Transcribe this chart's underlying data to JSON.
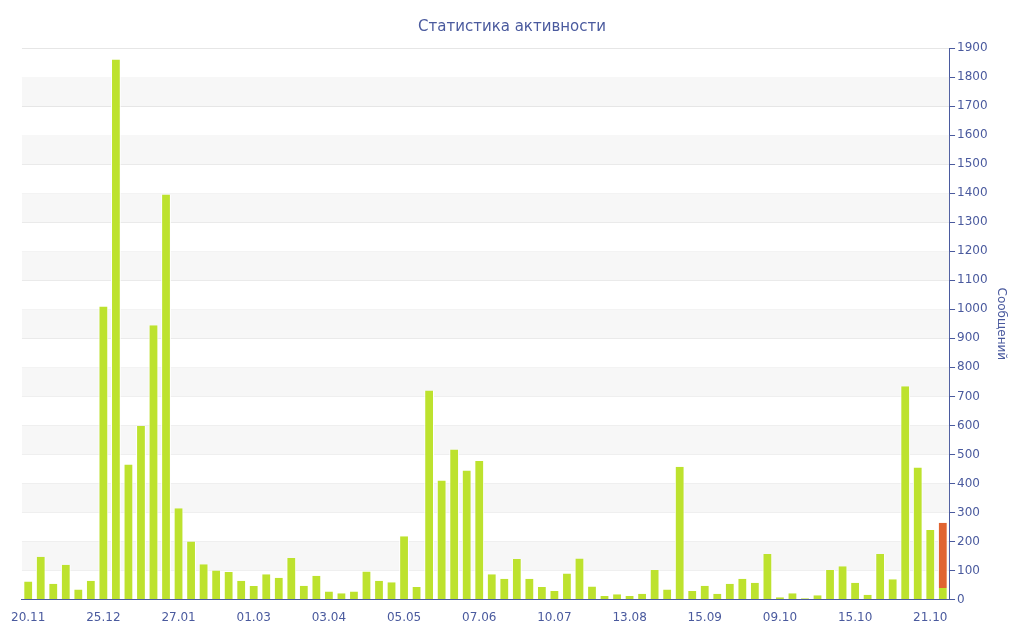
{
  "chart_data": {
    "type": "bar",
    "title": "Статистика активности",
    "ylabel": "Сообщений",
    "stacked": true,
    "grid": "y",
    "legend": false,
    "categories": [
      "20.11",
      null,
      null,
      null,
      null,
      null,
      "25.12",
      null,
      null,
      null,
      null,
      null,
      "27.01",
      null,
      null,
      null,
      null,
      null,
      "01.03",
      null,
      null,
      null,
      null,
      null,
      "03.04",
      null,
      null,
      null,
      null,
      null,
      "05.05",
      null,
      null,
      null,
      null,
      null,
      "07.06",
      null,
      null,
      null,
      null,
      null,
      "10.07",
      null,
      null,
      null,
      null,
      null,
      "13.08",
      null,
      null,
      null,
      null,
      null,
      "15.09",
      null,
      null,
      null,
      null,
      null,
      "09.10",
      null,
      null,
      null,
      null,
      null,
      "15.10",
      null,
      null,
      null,
      null,
      null,
      "21.10",
      null
    ],
    "series": [
      {
        "color": "#bde22e",
        "values": [
          62,
          148,
          55,
          120,
          35,
          65,
          1010,
          1860,
          465,
          598,
          945,
          1395,
          315,
          200,
          122,
          100,
          95,
          65,
          47,
          87,
          75,
          143,
          48,
          82,
          28,
          22,
          28,
          97,
          65,
          60,
          218,
          43,
          720,
          410,
          517,
          445,
          477,
          87,
          72,
          140,
          72,
          43,
          30,
          90,
          142,
          45,
          12,
          18,
          12,
          20,
          102,
          35,
          458,
          30,
          48,
          20,
          55,
          72,
          58,
          157,
          8,
          22,
          5,
          15,
          102,
          115,
          58,
          17,
          157,
          70,
          735,
          455,
          240,
          40
        ]
      },
      {
        "color": "#e06432",
        "values": [
          null,
          null,
          null,
          null,
          null,
          null,
          null,
          null,
          null,
          null,
          null,
          null,
          null,
          null,
          null,
          null,
          null,
          null,
          null,
          null,
          null,
          null,
          null,
          null,
          null,
          null,
          null,
          null,
          null,
          null,
          null,
          null,
          null,
          null,
          null,
          null,
          null,
          null,
          null,
          null,
          null,
          null,
          null,
          null,
          null,
          null,
          null,
          null,
          null,
          null,
          null,
          null,
          null,
          null,
          null,
          null,
          null,
          null,
          null,
          null,
          null,
          null,
          null,
          null,
          null,
          null,
          null,
          null,
          null,
          null,
          null,
          null,
          null,
          225
        ]
      }
    ],
    "ylim": [
      0,
      1900
    ],
    "yticks": [
      0,
      100,
      200,
      300,
      400,
      500,
      600,
      700,
      800,
      900,
      1000,
      1100,
      1200,
      1300,
      1400,
      1500,
      1600,
      1700,
      1800,
      1900
    ]
  }
}
